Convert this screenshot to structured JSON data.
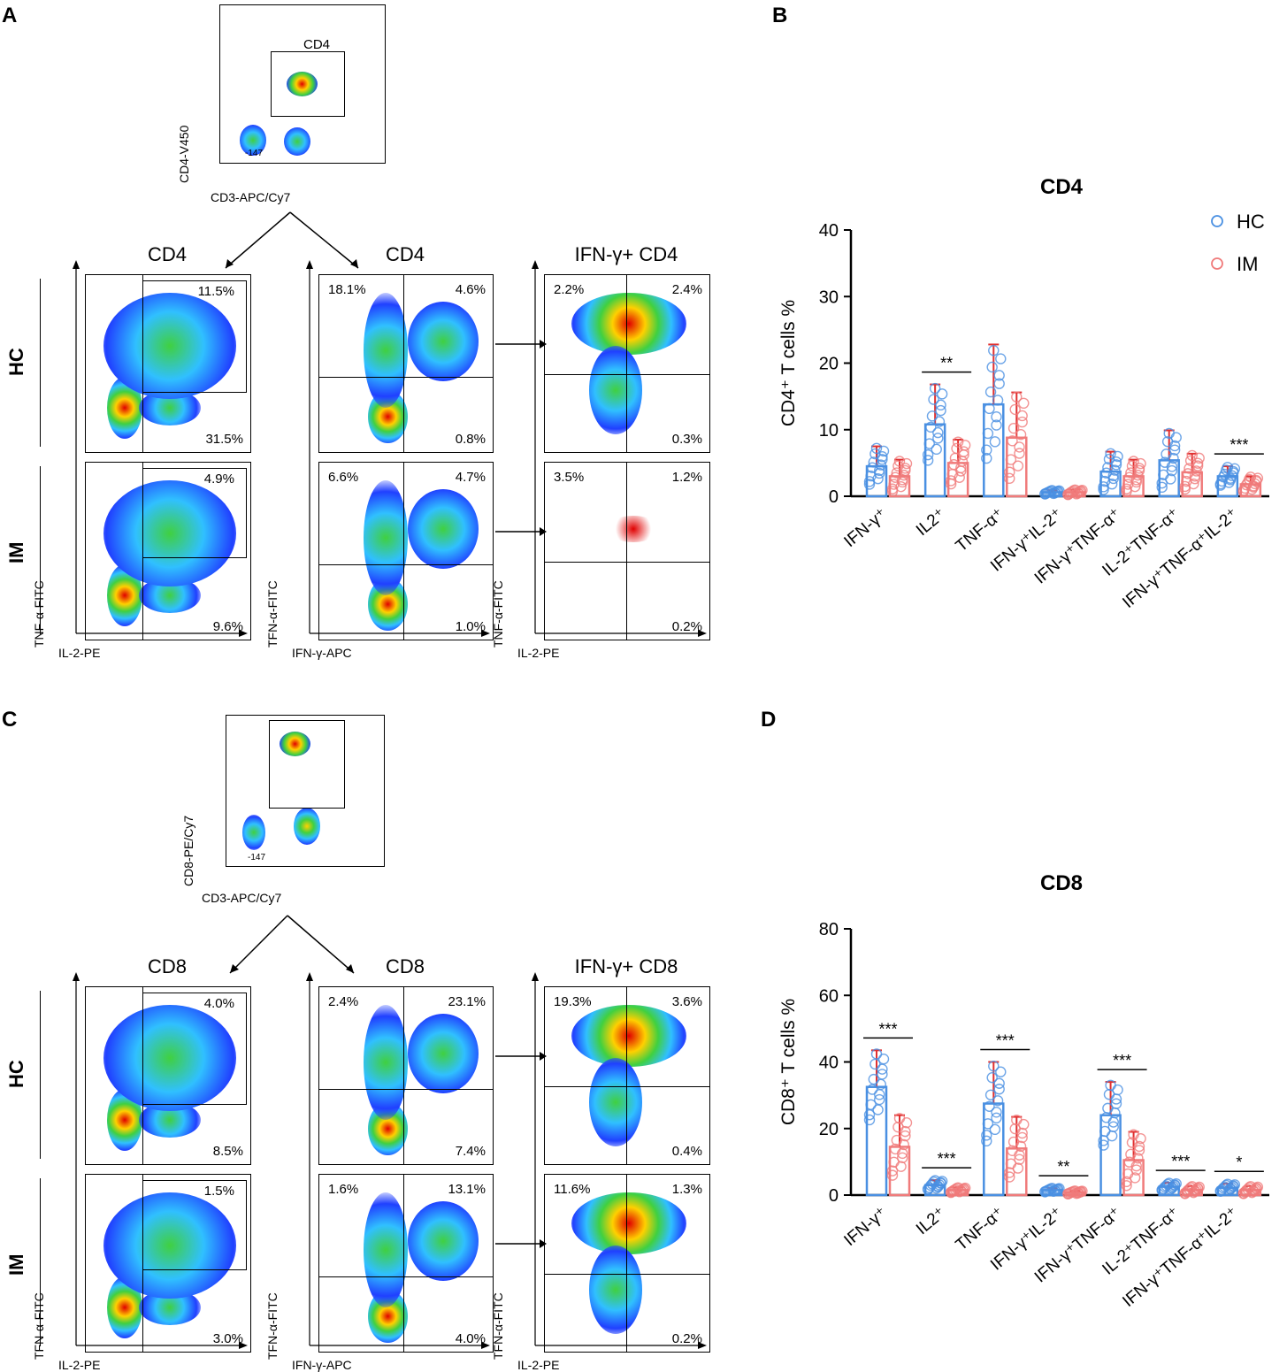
{
  "panels": {
    "A": "A",
    "B": "B",
    "C": "C",
    "D": "D"
  },
  "flow_top": {
    "A": {
      "gate_label": "CD4",
      "y_axis": "CD4-V450",
      "x_axis": "CD3-APC/Cy7",
      "ticks_low": "-147"
    },
    "C": {
      "y_axis": "CD8-PE/Cy7",
      "x_axis": "CD3-APC/Cy7",
      "ticks_low": "-147"
    }
  },
  "flow_grid": {
    "A": {
      "col_titles": [
        "CD4",
        "CD4",
        "IFN-γ+ CD4"
      ],
      "groups": [
        "HC",
        "IM"
      ],
      "y_axes": [
        "TNF-α-FITC",
        "TFN-α-FITC",
        "TNF-α-FITC"
      ],
      "x_axes": [
        "IL-2-PE",
        "IFN-γ-APC",
        "IL-2-PE"
      ],
      "pcts": {
        "HC": [
          [
            "11.5%",
            "31.5%"
          ],
          [
            "18.1%",
            "4.6%",
            "0.8%"
          ],
          [
            "2.2%",
            "2.4%",
            "0.3%"
          ]
        ],
        "IM": [
          [
            "4.9%",
            "9.6%"
          ],
          [
            "6.6%",
            "4.7%",
            "1.0%"
          ],
          [
            "3.5%",
            "1.2%",
            "0.2%"
          ]
        ]
      }
    },
    "C": {
      "col_titles": [
        "CD8",
        "CD8",
        "IFN-γ+ CD8"
      ],
      "groups": [
        "HC",
        "IM"
      ],
      "y_axes": [
        "TFN-α-FITC",
        "TFN-α-FITC",
        "TFN-α-FITC"
      ],
      "x_axes": [
        "IL-2-PE",
        "IFN-γ-APC",
        "IL-2-PE"
      ],
      "pcts": {
        "HC": [
          [
            "4.0%",
            "8.5%"
          ],
          [
            "2.4%",
            "23.1%",
            "7.4%"
          ],
          [
            "19.3%",
            "3.6%",
            "0.4%"
          ]
        ],
        "IM": [
          [
            "1.5%",
            "3.0%"
          ],
          [
            "1.6%",
            "13.1%",
            "4.0%"
          ],
          [
            "11.6%",
            "1.3%",
            "0.2%"
          ]
        ]
      }
    }
  },
  "chart_data": [
    {
      "type": "bar",
      "title": "CD4",
      "ylabel": "CD4⁺ T cells %",
      "ylim": [
        0,
        40
      ],
      "yticks": [
        0,
        10,
        20,
        30,
        40
      ],
      "categories": [
        "IFN-γ⁺",
        "IL2⁺",
        "TNF-α⁺",
        "IFN-γ⁺IL-2⁺",
        "IFN-γ⁺TNF-α⁺",
        "IL-2⁺TNF-α⁺",
        "IFN-γ⁺TNF-α⁺IL-2⁺"
      ],
      "series": [
        {
          "name": "HC",
          "color": "#4a90e2",
          "values": [
            4.5,
            10.8,
            13.8,
            0.6,
            3.7,
            5.4,
            3.0
          ],
          "sd": [
            3.0,
            6.0,
            9.0,
            0.3,
            3.0,
            4.5,
            1.5
          ]
        },
        {
          "name": "IM",
          "color": "#f07b7b",
          "values": [
            3.0,
            5.0,
            8.8,
            0.6,
            3.0,
            3.6,
            1.8
          ],
          "sd": [
            2.5,
            3.5,
            6.8,
            0.4,
            2.5,
            2.8,
            1.2
          ]
        }
      ],
      "significance": [
        {
          "category": "IL2⁺",
          "label": "**"
        },
        {
          "category": "IFN-γ⁺TNF-α⁺IL-2⁺",
          "label": "***"
        }
      ],
      "legend": [
        "HC",
        "IM"
      ]
    },
    {
      "type": "bar",
      "title": "CD8",
      "ylabel": "CD8⁺ T cells %",
      "ylim": [
        0,
        80
      ],
      "yticks": [
        0,
        20,
        40,
        60,
        80
      ],
      "categories": [
        "IFN-γ⁺",
        "IL2⁺",
        "TNF-α⁺",
        "IFN-γ⁺IL-2⁺",
        "IFN-γ⁺TNF-α⁺",
        "IL-2⁺TNF-α⁺",
        "IFN-γ⁺TNF-α⁺IL-2⁺"
      ],
      "series": [
        {
          "name": "HC",
          "color": "#4a90e2",
          "values": [
            32.5,
            3.0,
            27.5,
            1.5,
            24.0,
            2.5,
            2.2
          ],
          "sd": [
            11.0,
            1.5,
            12.5,
            0.6,
            10.0,
            1.2,
            1.2
          ]
        },
        {
          "name": "IM",
          "color": "#f07b7b",
          "values": [
            14.5,
            1.5,
            14.0,
            0.8,
            10.5,
            1.5,
            1.5
          ],
          "sd": [
            9.5,
            0.8,
            9.5,
            0.5,
            8.5,
            1.2,
            1.2
          ]
        }
      ],
      "significance": [
        {
          "category": "IFN-γ⁺",
          "label": "***"
        },
        {
          "category": "IL2⁺",
          "label": "***"
        },
        {
          "category": "TNF-α⁺",
          "label": "***"
        },
        {
          "category": "IFN-γ⁺IL-2⁺",
          "label": "**"
        },
        {
          "category": "IFN-γ⁺TNF-α⁺",
          "label": "***"
        },
        {
          "category": "IL-2⁺TNF-α⁺",
          "label": "***"
        },
        {
          "category": "IFN-γ⁺TNF-α⁺IL-2⁺",
          "label": "*"
        }
      ]
    }
  ]
}
